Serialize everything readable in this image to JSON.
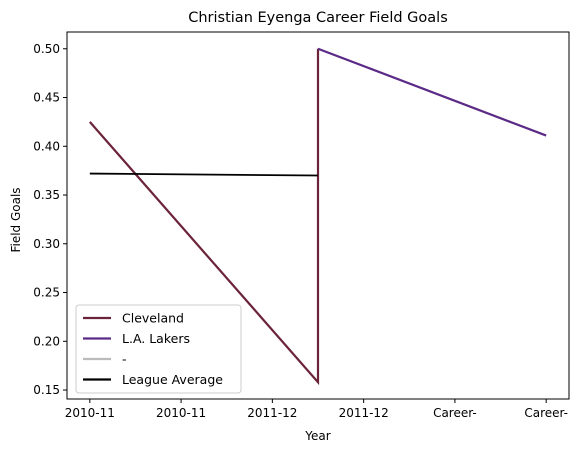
{
  "chart_data": {
    "type": "line",
    "title": "Christian Eyenga Career Field Goals",
    "xlabel": "Year",
    "ylabel": "Field Goals",
    "x_ticks": [
      "2010-11",
      "2010-11",
      "2011-12",
      "2011-12",
      "Career-",
      "Career-"
    ],
    "xlim": [
      -0.25,
      5.25
    ],
    "ylim": [
      0.1408,
      0.5172
    ],
    "y_ticks": [
      0.15,
      0.2,
      0.25,
      0.3,
      0.35,
      0.4,
      0.45,
      0.5
    ],
    "y_tick_labels": [
      "0.15",
      "0.20",
      "0.25",
      "0.30",
      "0.35",
      "0.40",
      "0.45",
      "0.50"
    ],
    "grid": false,
    "legend_position": "lower-left",
    "series": [
      {
        "name": "Cleveland",
        "color": "#6b2339",
        "points": [
          [
            0,
            0.425
          ],
          [
            2.5,
            0.158
          ],
          [
            2.5,
            0.5
          ]
        ]
      },
      {
        "name": "L.A. Lakers",
        "color": "#5b2a86",
        "points": [
          [
            2.5,
            0.5
          ],
          [
            5,
            0.411
          ]
        ]
      },
      {
        "name": "-",
        "color": "#bbbbbb",
        "points": []
      },
      {
        "name": "League Average",
        "color": "#000000",
        "points": [
          [
            0,
            0.372
          ],
          [
            2.5,
            0.37
          ]
        ]
      }
    ]
  }
}
